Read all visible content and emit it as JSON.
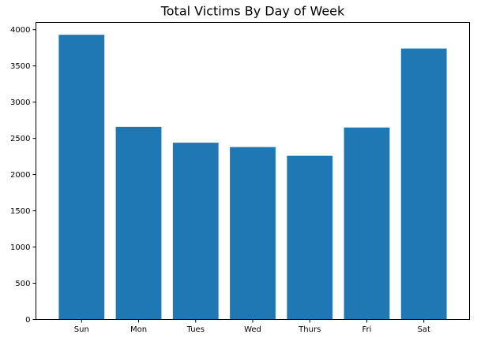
{
  "chart_data": {
    "type": "bar",
    "title": "Total Victims By Day of Week",
    "xlabel": "",
    "ylabel": "",
    "categories": [
      "Sun",
      "Mon",
      "Tues",
      "Wed",
      "Thurs",
      "Fri",
      "Sat"
    ],
    "values": [
      3930,
      2660,
      2440,
      2380,
      2260,
      2650,
      3740
    ],
    "ylim": [
      0,
      4100
    ],
    "yticks": [
      0,
      500,
      1000,
      1500,
      2000,
      2500,
      3000,
      3500,
      4000
    ],
    "grid": false,
    "bar_color": "#1f77b4"
  }
}
